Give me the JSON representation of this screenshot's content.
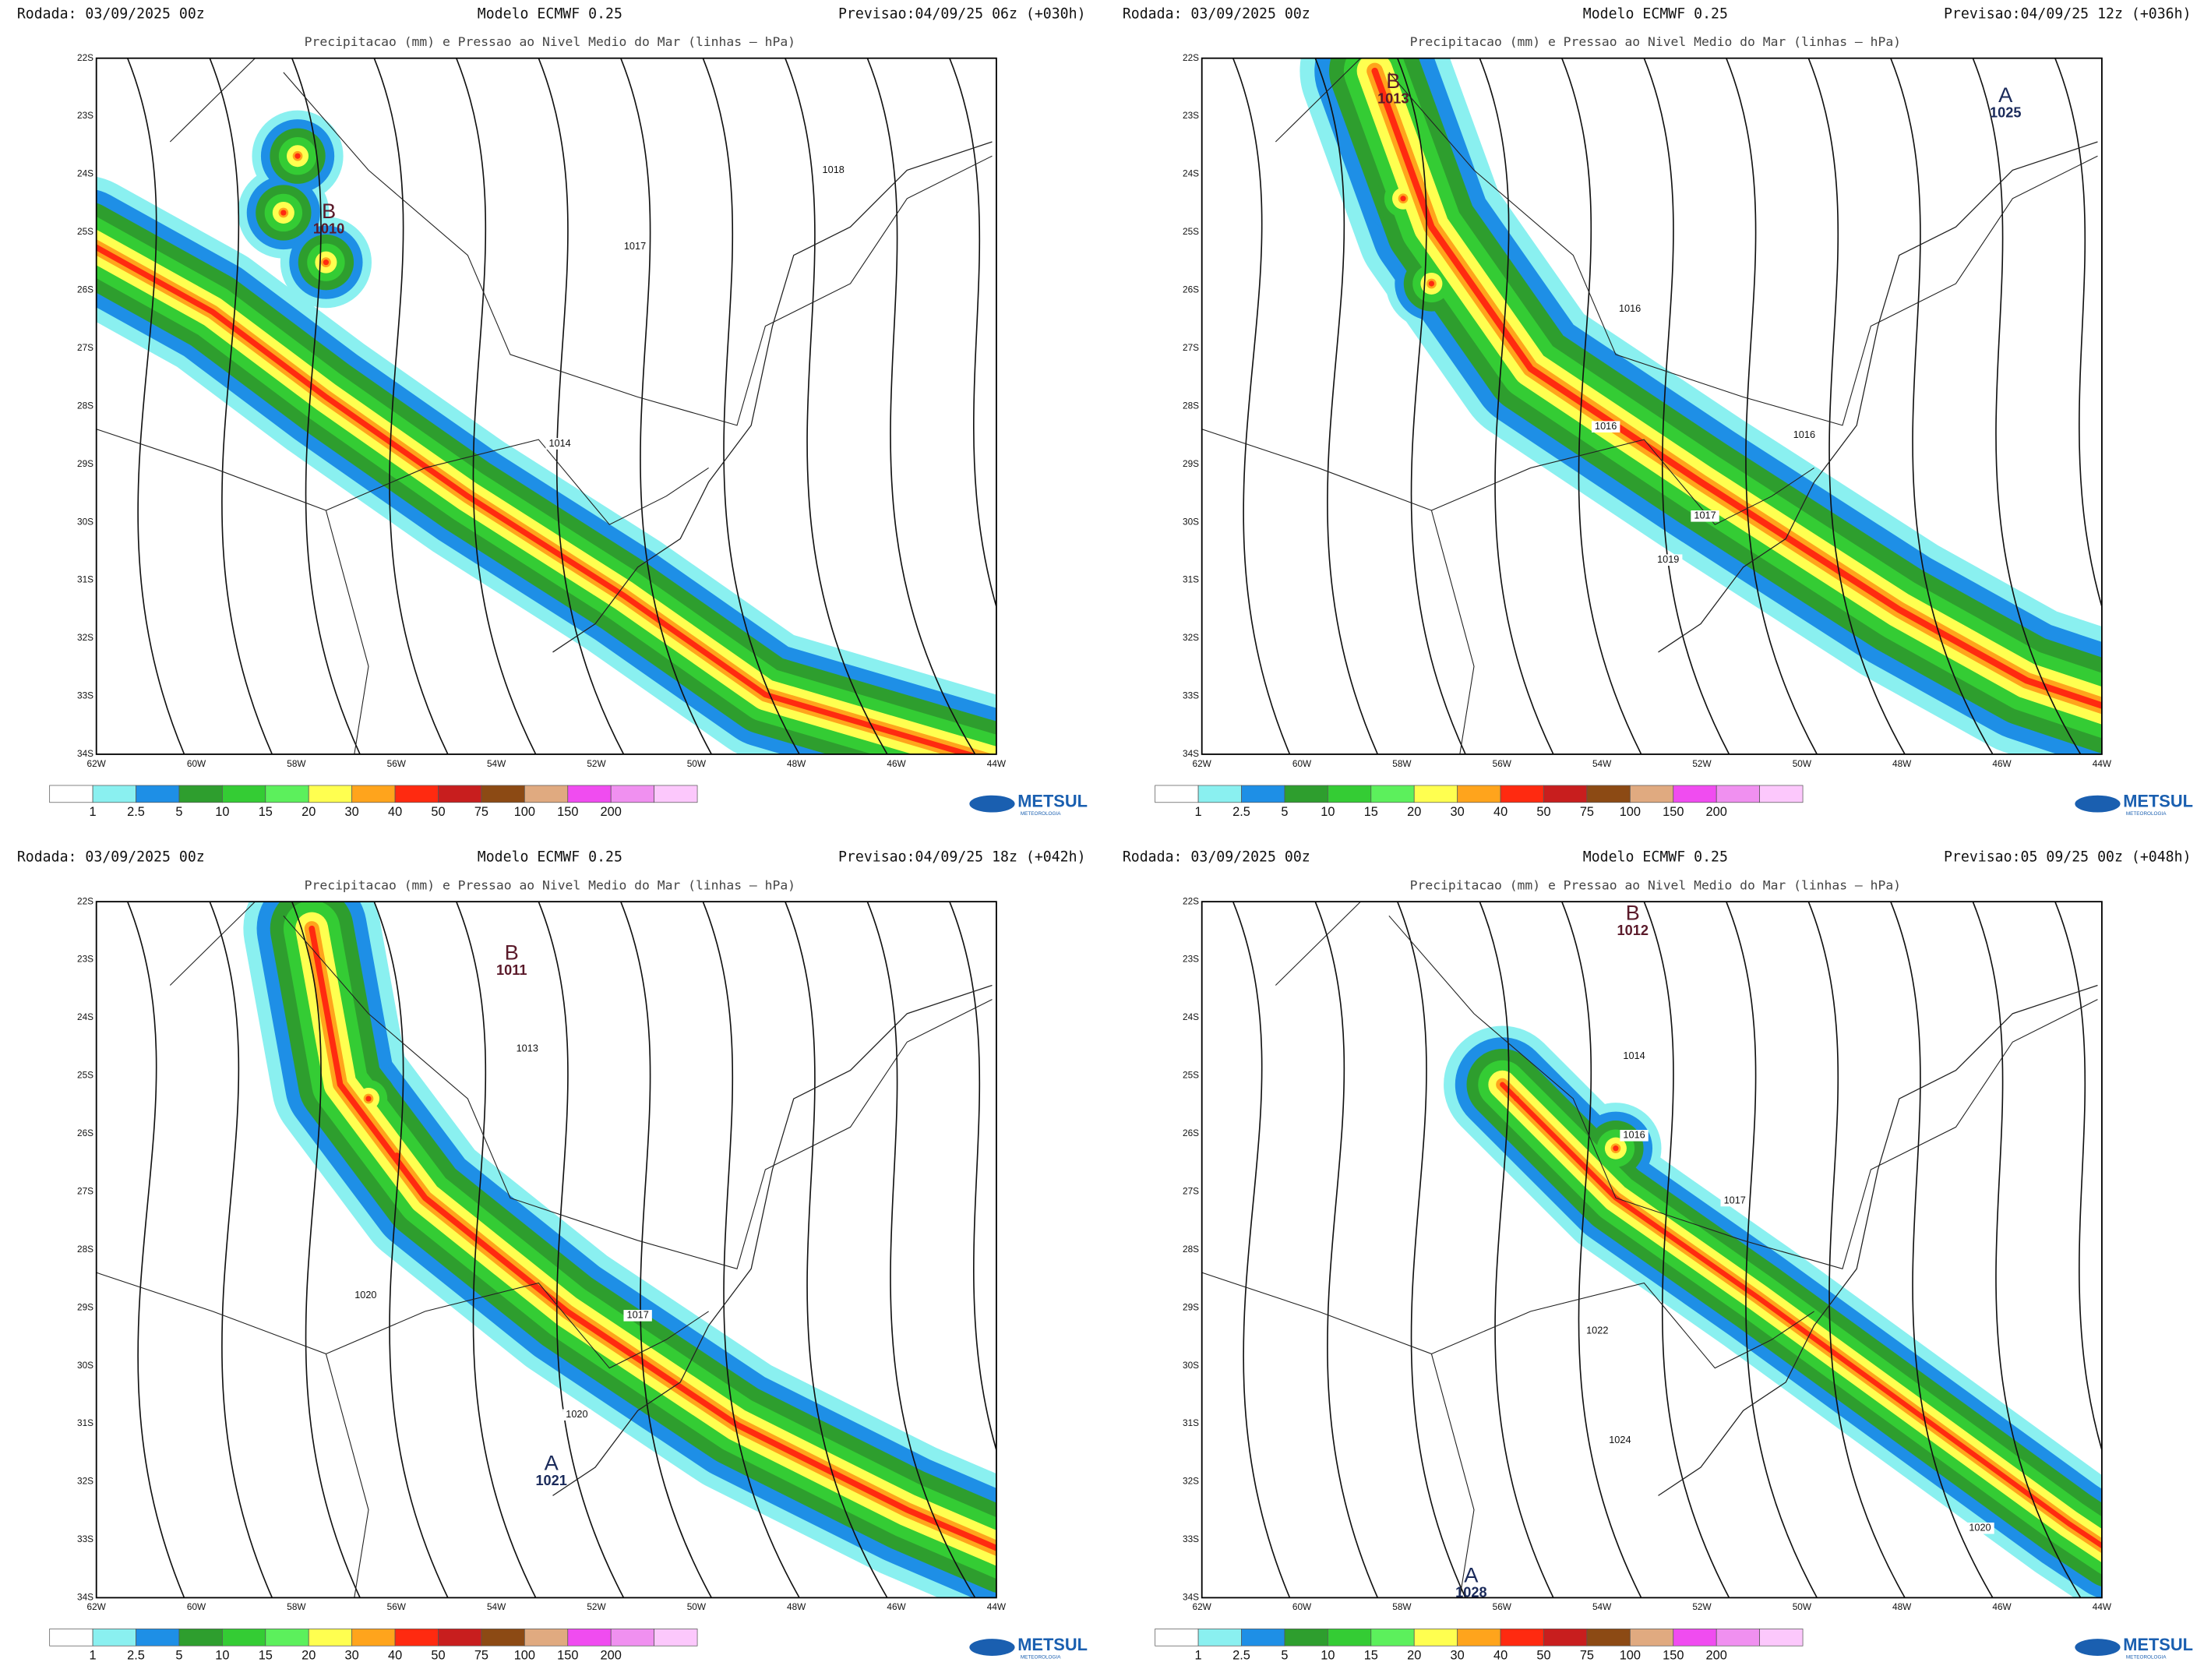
{
  "axes": {
    "lat_labels": [
      "22S",
      "23S",
      "24S",
      "25S",
      "26S",
      "27S",
      "28S",
      "29S",
      "30S",
      "31S",
      "32S",
      "33S",
      "34S"
    ],
    "lon_labels": [
      "62W",
      "60W",
      "58W",
      "56W",
      "54W",
      "52W",
      "50W",
      "48W",
      "46W",
      "44W"
    ]
  },
  "legend": {
    "labels": [
      "1",
      "2.5",
      "5",
      "10",
      "15",
      "20",
      "30",
      "40",
      "50",
      "75",
      "100",
      "150",
      "200"
    ],
    "colors": [
      "#ffffff",
      "#8af0f0",
      "#1e8fe6",
      "#2e9e2e",
      "#34cc34",
      "#5cf05c",
      "#ffff50",
      "#ffa41c",
      "#ff2a10",
      "#c81e1e",
      "#8c4a14",
      "#e0aa80",
      "#f04cf0",
      "#f090f0",
      "#fcc8fc"
    ]
  },
  "logo": {
    "name": "METSUL",
    "tagline": "METEOROLOGIA"
  },
  "panels": [
    {
      "run": "Rodada: 03/09/2025 00z",
      "model": "Modelo ECMWF 0.25",
      "forecast": "Previsao:04/09/25 06z (+030h)",
      "title": "Precipitacao (mm) e Pressao ao Nivel Medio do Mar (linhas – hPa)",
      "isobars": [
        "1018",
        "1017",
        "1014"
      ],
      "centers": [
        {
          "letter": "B",
          "value": "1010"
        }
      ]
    },
    {
      "run": "Rodada: 03/09/2025 00z",
      "model": "Modelo ECMWF 0.25",
      "forecast": "Previsao:04/09/25 12z (+036h)",
      "title": "Precipitacao (mm) e Pressao ao Nivel Medio do Mar (linhas – hPa)",
      "isobars": [
        "1016",
        "1016",
        "1016",
        "1017",
        "1019"
      ],
      "centers": [
        {
          "letter": "B",
          "value": "1013"
        },
        {
          "letter": "A",
          "value": "1025"
        }
      ]
    },
    {
      "run": "Rodada: 03/09/2025 00z",
      "model": "Modelo ECMWF 0.25",
      "forecast": "Previsao:04/09/25 18z (+042h)",
      "title": "Precipitacao (mm) e Pressao ao Nivel Medio do Mar (linhas – hPa)",
      "isobars": [
        "1013",
        "1020",
        "1017",
        "1020"
      ],
      "centers": [
        {
          "letter": "B",
          "value": "1011"
        },
        {
          "letter": "A",
          "value": "1021"
        }
      ]
    },
    {
      "run": "Rodada: 03/09/2025 00z",
      "model": "Modelo ECMWF 0.25",
      "forecast": "Previsao:05 09/25 00z (+048h)",
      "title": "Precipitacao (mm) e Pressao ao Nivel Medio do Mar (linhas – hPa)",
      "isobars": [
        "1014",
        "1016",
        "1017",
        "1022",
        "1024",
        "1020"
      ],
      "centers": [
        {
          "letter": "B",
          "value": "1012"
        },
        {
          "letter": "A",
          "value": "1028"
        }
      ]
    }
  ]
}
